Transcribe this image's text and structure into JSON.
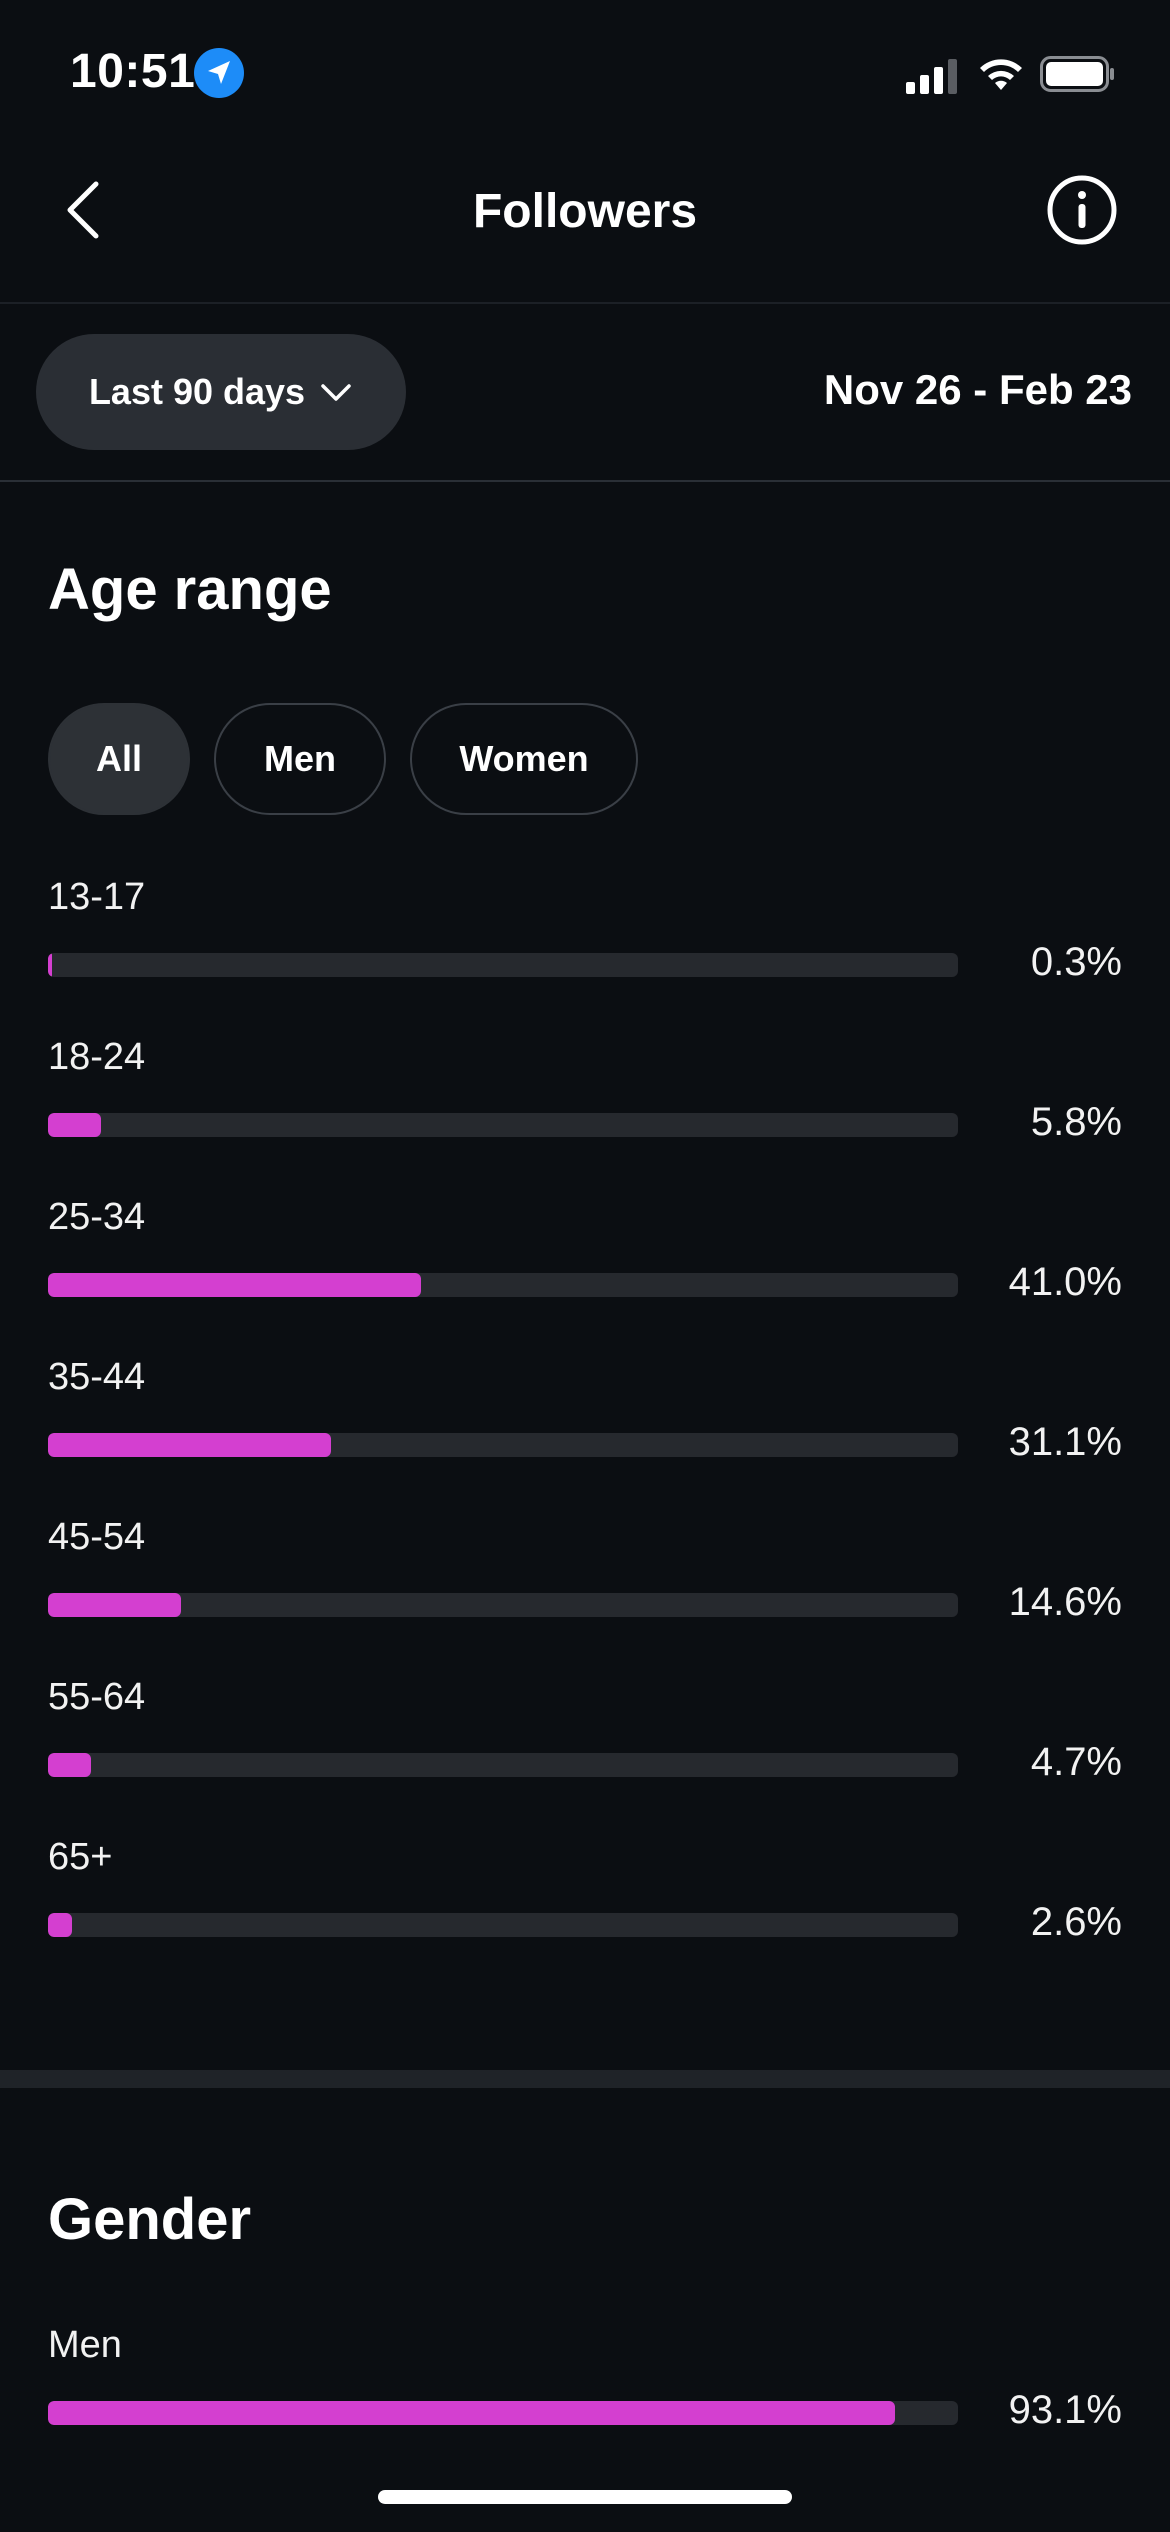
{
  "status_bar": {
    "time": "10:51"
  },
  "header": {
    "title": "Followers"
  },
  "date_filter": {
    "selected": "Last 90 days",
    "range": "Nov 26 - Feb 23"
  },
  "age_section": {
    "title": "Age range",
    "filters": [
      "All",
      "Men",
      "Women"
    ],
    "active_filter": "All",
    "rows": [
      {
        "label": "13-17",
        "value": "0.3%",
        "pct": 0.3
      },
      {
        "label": "18-24",
        "value": "5.8%",
        "pct": 5.8
      },
      {
        "label": "25-34",
        "value": "41.0%",
        "pct": 41.0
      },
      {
        "label": "35-44",
        "value": "31.1%",
        "pct": 31.1
      },
      {
        "label": "45-54",
        "value": "14.6%",
        "pct": 14.6
      },
      {
        "label": "55-64",
        "value": "4.7%",
        "pct": 4.7
      },
      {
        "label": "65+",
        "value": "2.6%",
        "pct": 2.6
      }
    ]
  },
  "gender_section": {
    "title": "Gender",
    "rows": [
      {
        "label": "Men",
        "value": "93.1%",
        "pct": 93.1
      }
    ]
  },
  "colors": {
    "accent": "#d43fd0",
    "background": "#0b0e12",
    "track": "#26292e",
    "location_blue": "#1d8cf8"
  }
}
